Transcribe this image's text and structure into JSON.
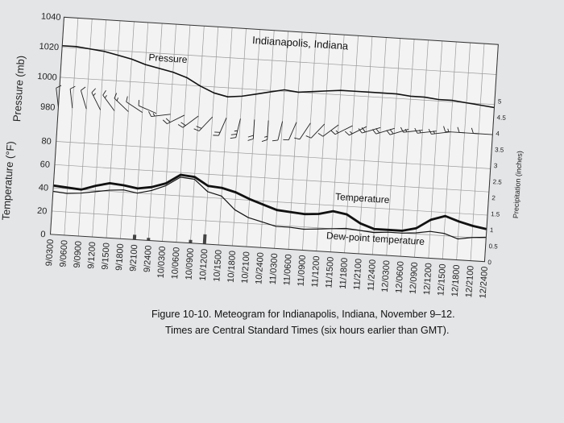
{
  "chart_data": {
    "type": "line",
    "title": "Indianapolis, Indiana",
    "caption": {
      "line1": "Figure 10-10. Meteogram for Indianapolis, Indiana, November 9–12.",
      "line2": "Times are Central Standard Times (six hours earlier than GMT)."
    },
    "x_categories": [
      "9/0300",
      "9/0600",
      "9/0900",
      "9/1200",
      "9/1500",
      "9/1800",
      "9/2100",
      "9/2400",
      "10/0300",
      "10/0600",
      "10/0900",
      "10/1200",
      "10/1500",
      "10/1800",
      "10/2100",
      "10/2400",
      "11/0300",
      "11/0600",
      "11/0900",
      "11/1200",
      "11/1500",
      "11/1800",
      "11/2100",
      "11/2400",
      "12/0300",
      "12/0600",
      "12/0900",
      "12/1200",
      "12/1500",
      "12/1800",
      "12/2100",
      "12/2400"
    ],
    "pressure_axis": {
      "title": "Pressure (mb)",
      "ylim": [
        980,
        1040
      ],
      "ticks": [
        "1040",
        "1020",
        "1000",
        "980"
      ]
    },
    "temperature_axis": {
      "title": "Temperature (°F)",
      "ylim": [
        0,
        90
      ],
      "ticks": [
        "80",
        "60",
        "40",
        "20",
        "0"
      ]
    },
    "precip_axis": {
      "title": "Precipitation (inches)",
      "ylim": [
        0,
        5
      ],
      "ticks": [
        "5",
        "4.5",
        "4",
        "3.5",
        "3",
        "2.5",
        "2",
        "1.5",
        "1",
        "0.5",
        "0"
      ]
    },
    "pressure": {
      "name": "Pressure",
      "values": [
        1021,
        1021,
        1020,
        1019,
        1017,
        1015,
        1012,
        1010,
        1008,
        1005,
        1000,
        996,
        994,
        995,
        997,
        999,
        1001,
        1000,
        1001,
        1002,
        1003,
        1003,
        1003,
        1003,
        1003,
        1002,
        1002,
        1001,
        1001,
        1000,
        999,
        998
      ]
    },
    "temperature": {
      "name": "Temperature",
      "values": [
        42,
        41,
        40,
        44,
        47,
        46,
        44,
        46,
        50,
        58,
        57,
        50,
        49,
        46,
        41,
        37,
        33,
        32,
        31,
        32,
        35,
        33,
        26,
        22,
        22,
        22,
        25,
        33,
        37,
        33,
        30,
        28
      ]
    },
    "dew_point": {
      "name": "Dew-point temperature",
      "values": [
        37,
        36,
        37,
        39,
        41,
        42,
        40,
        43,
        48,
        56,
        55,
        45,
        42,
        31,
        25,
        22,
        19,
        19,
        18,
        19,
        20,
        21,
        20,
        19,
        20,
        20,
        21,
        23,
        22,
        18,
        20,
        21
      ]
    },
    "precipitation": {
      "values": [
        0,
        0,
        0,
        0,
        0,
        0,
        0.15,
        0.08,
        0,
        0,
        0.1,
        0.3,
        0,
        0,
        0,
        0,
        0,
        0,
        0,
        0,
        0,
        0,
        0,
        0,
        0,
        0,
        0,
        0,
        0,
        0,
        0,
        0
      ]
    },
    "wind_barbs": {
      "directions_deg": [
        350,
        350,
        340,
        330,
        320,
        310,
        300,
        290,
        260,
        240,
        230,
        220,
        200,
        190,
        180,
        180,
        190,
        200,
        210,
        220,
        230,
        240,
        240,
        250,
        250,
        250,
        260,
        260,
        260,
        270,
        270,
        270
      ],
      "speeds_kt": [
        10,
        10,
        10,
        15,
        15,
        15,
        10,
        10,
        15,
        20,
        20,
        20,
        20,
        25,
        20,
        15,
        10,
        10,
        10,
        10,
        10,
        15,
        15,
        20,
        20,
        20,
        15,
        15,
        15,
        15,
        10,
        10
      ]
    },
    "grid": true
  }
}
